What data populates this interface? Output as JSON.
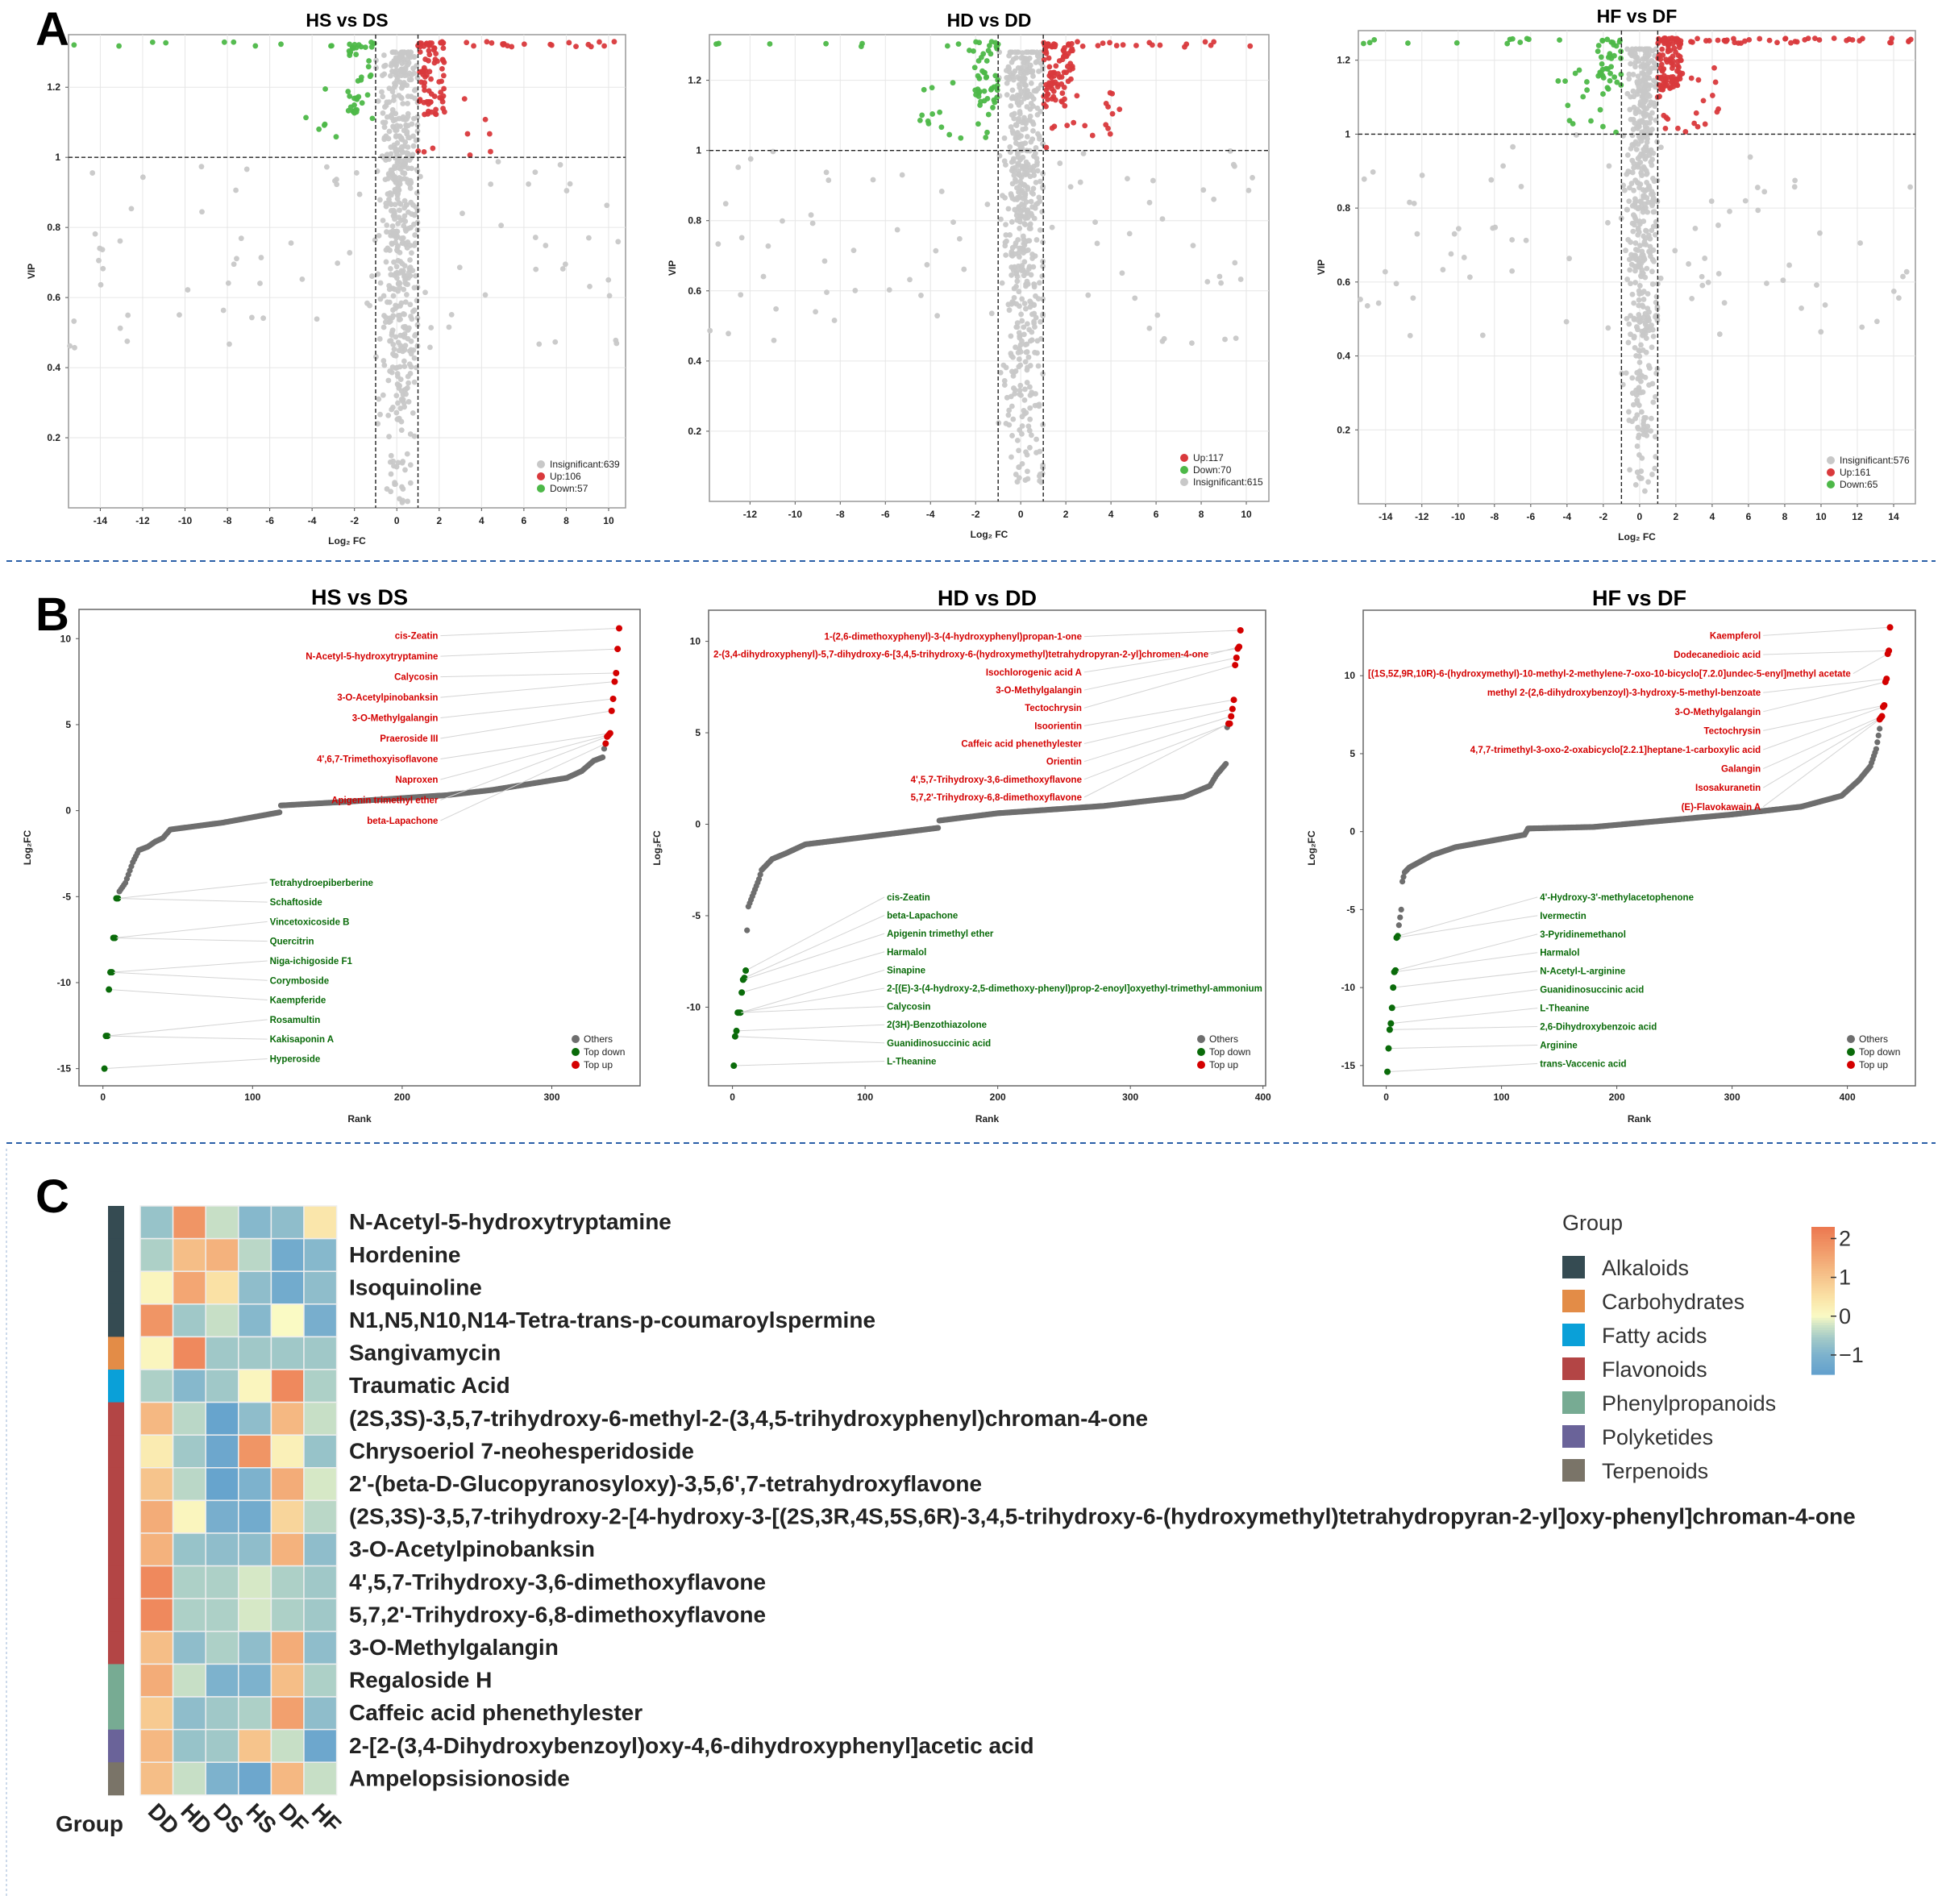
{
  "panels": {
    "a": "A",
    "b": "B",
    "c": "C"
  },
  "colors": {
    "up": "#d9393c",
    "down": "#4db848",
    "insig": "#c8c8c8",
    "others": "#6e6e6e",
    "top_down": "#0a6b0a",
    "top_up": "#d40000"
  },
  "chart_data": [
    {
      "id": "volcano-hs-ds",
      "type": "scatter",
      "title": "HS vs DS",
      "xlabel": "Log₂ FC",
      "ylabel": "VIP",
      "xlim": [
        -15.5,
        10.8
      ],
      "ylim": [
        0,
        1.35
      ],
      "xticks": [
        -14,
        -12,
        -10,
        -8,
        -6,
        -4,
        -2,
        0,
        2,
        4,
        6,
        8,
        10
      ],
      "yticks": [
        0.2,
        0.4,
        0.6,
        0.8,
        1.0,
        1.2
      ],
      "vip_threshold": 1.0,
      "fc_threshold": [
        -1,
        1
      ],
      "seed": 11,
      "legend": [
        {
          "key": "insig",
          "label": "Insignificant:639",
          "count": 639
        },
        {
          "key": "up",
          "label": "Up:106",
          "count": 106
        },
        {
          "key": "down",
          "label": "Down:57",
          "count": 57
        }
      ]
    },
    {
      "id": "volcano-hd-dd",
      "type": "scatter",
      "title": "HD vs DD",
      "xlabel": "Log₂ FC",
      "ylabel": "VIP",
      "xlim": [
        -13.8,
        11
      ],
      "ylim": [
        0,
        1.33
      ],
      "xticks": [
        -12,
        -10,
        -8,
        -6,
        -4,
        -2,
        0,
        2,
        4,
        6,
        8,
        10
      ],
      "yticks": [
        0.2,
        0.4,
        0.6,
        0.8,
        1.0,
        1.2
      ],
      "vip_threshold": 1.0,
      "fc_threshold": [
        -1,
        1
      ],
      "seed": 23,
      "legend": [
        {
          "key": "up",
          "label": "Up:117",
          "count": 117
        },
        {
          "key": "down",
          "label": "Down:70",
          "count": 70
        },
        {
          "key": "insig",
          "label": "Insignificant:615",
          "count": 615
        }
      ]
    },
    {
      "id": "volcano-hf-df",
      "type": "scatter",
      "title": "HF vs DF",
      "xlabel": "Log₂ FC",
      "ylabel": "VIP",
      "xlim": [
        -15.5,
        15.2
      ],
      "ylim": [
        0,
        1.28
      ],
      "xticks": [
        -14,
        -12,
        -10,
        -8,
        -6,
        -4,
        -2,
        0,
        2,
        4,
        6,
        8,
        10,
        12,
        14
      ],
      "yticks": [
        0.2,
        0.4,
        0.6,
        0.8,
        1.0,
        1.2
      ],
      "vip_threshold": 1.0,
      "fc_threshold": [
        -1,
        1
      ],
      "seed": 37,
      "legend": [
        {
          "key": "insig",
          "label": "Insignificant:576",
          "count": 576
        },
        {
          "key": "up",
          "label": "Up:161",
          "count": 161
        },
        {
          "key": "down",
          "label": "Down:65",
          "count": 65
        }
      ]
    },
    {
      "id": "rank-hs-ds",
      "type": "scatter",
      "title": "HS vs DS",
      "xlabel": "Rank",
      "ylabel": "Log₂FC",
      "xlim": [
        -16,
        359
      ],
      "ylim": [
        -16,
        11.7
      ],
      "xticks": [
        0,
        100,
        200,
        300
      ],
      "yticks": [
        -15,
        -10,
        -5,
        0,
        5,
        10
      ],
      "n_total": 345,
      "curve": [
        [
          11,
          -4.7
        ],
        [
          15,
          -4.2
        ],
        [
          20,
          -3.0
        ],
        [
          24,
          -2.3
        ],
        [
          30,
          -2.1
        ],
        [
          35,
          -1.8
        ],
        [
          40,
          -1.6
        ],
        [
          45,
          -1.1
        ],
        [
          80,
          -0.7
        ],
        [
          118,
          -0.1
        ],
        [
          119,
          0.3
        ],
        [
          160,
          0.5
        ],
        [
          230,
          0.9
        ],
        [
          260,
          1.2
        ],
        [
          310,
          1.9
        ],
        [
          320,
          2.3
        ],
        [
          328,
          2.9
        ],
        [
          334,
          3.1
        ],
        [
          335,
          3.6
        ]
      ],
      "top_up": [
        {
          "name": "cis-Zeatin",
          "value": 10.6
        },
        {
          "name": "N-Acetyl-5-hydroxytryptamine",
          "value": 9.4
        },
        {
          "name": "Calycosin",
          "value": 8.0
        },
        {
          "name": "3-O-Acetylpinobanksin",
          "value": 7.5
        },
        {
          "name": "3-O-Methylgalangin",
          "value": 6.5
        },
        {
          "name": "Praeroside III",
          "value": 5.8
        },
        {
          "name": "4',6,7-Trimethoxyisoflavone",
          "value": 4.5
        },
        {
          "name": "Naproxen",
          "value": 4.4
        },
        {
          "name": "Apigenin trimethyl ether",
          "value": 4.3
        },
        {
          "name": "beta-Lapachone",
          "value": 3.9
        }
      ],
      "top_down": [
        {
          "name": "Tetrahydroepiberberine",
          "value": -5.1
        },
        {
          "name": "Schaftoside",
          "value": -5.1
        },
        {
          "name": "Vincetoxicoside B",
          "value": -7.4
        },
        {
          "name": "Quercitrin",
          "value": -7.4
        },
        {
          "name": "Niga-ichigoside F1",
          "value": -9.4
        },
        {
          "name": "Corymboside",
          "value": -9.4
        },
        {
          "name": "Kaempferide",
          "value": -10.4
        },
        {
          "name": "Rosamultin",
          "value": -13.1
        },
        {
          "name": "Kakisaponin A",
          "value": -13.1
        },
        {
          "name": "Hyperoside",
          "value": -15.0
        }
      ],
      "legend": [
        "Others",
        "Top down",
        "Top up"
      ]
    },
    {
      "id": "rank-hd-dd",
      "type": "scatter",
      "title": "HD vs DD",
      "xlabel": "Rank",
      "ylabel": "Log₂FC",
      "xlim": [
        -18,
        402
      ],
      "ylim": [
        -14.3,
        11.7
      ],
      "xticks": [
        0,
        100,
        200,
        300,
        400
      ],
      "yticks": [
        -10,
        -5,
        0,
        5,
        10
      ],
      "n_total": 383,
      "curve": [
        [
          11,
          -5.8
        ],
        [
          12,
          -4.5
        ],
        [
          20,
          -3.0
        ],
        [
          22,
          -2.5
        ],
        [
          30,
          -1.9
        ],
        [
          40,
          -1.6
        ],
        [
          55,
          -1.1
        ],
        [
          100,
          -0.7
        ],
        [
          155,
          -0.2
        ],
        [
          156,
          0.2
        ],
        [
          200,
          0.6
        ],
        [
          280,
          1.0
        ],
        [
          340,
          1.5
        ],
        [
          360,
          2.1
        ],
        [
          365,
          2.7
        ],
        [
          372,
          3.3
        ],
        [
          373,
          5.3
        ]
      ],
      "top_up": [
        {
          "name": "1-(2,6-dimethoxyphenyl)-3-(4-hydroxyphenyl)propan-1-one",
          "value": 10.6
        },
        {
          "name": "2-(3,4-dihydroxyphenyl)-5,7-dihydroxy-6-[3,4,5-trihydroxy-6-(hydroxymethyl)tetrahydropyran-2-yl]chromen-4-one",
          "value": 9.7
        },
        {
          "name": "Isochlorogenic acid A",
          "value": 9.6
        },
        {
          "name": "3-O-Methylgalangin",
          "value": 9.1
        },
        {
          "name": "Tectochrysin",
          "value": 8.7
        },
        {
          "name": "Isoorientin",
          "value": 6.8
        },
        {
          "name": "Caffeic acid phenethylester",
          "value": 6.3
        },
        {
          "name": "Orientin",
          "value": 5.9
        },
        {
          "name": "4',5,7-Trihydroxy-3,6-dimethoxyflavone",
          "value": 5.5
        },
        {
          "name": "5,7,2'-Trihydroxy-6,8-dimethoxyflavone",
          "value": 5.5
        }
      ],
      "top_down": [
        {
          "name": "cis-Zeatin",
          "value": -8.0
        },
        {
          "name": "beta-Lapachone",
          "value": -8.4
        },
        {
          "name": "Apigenin trimethyl ether",
          "value": -8.5
        },
        {
          "name": "Harmalol",
          "value": -9.2
        },
        {
          "name": "Sinapine",
          "value": -10.3
        },
        {
          "name": "2-[(E)-3-(4-hydroxy-2,5-dimethoxy-phenyl)prop-2-enoyl]oxyethyl-trimethyl-ammonium",
          "value": -10.3
        },
        {
          "name": "Calycosin",
          "value": -10.3
        },
        {
          "name": "2(3H)-Benzothiazolone",
          "value": -11.3
        },
        {
          "name": "Guanidinosuccinic acid",
          "value": -11.6
        },
        {
          "name": "L-Theanine",
          "value": -13.2
        }
      ],
      "legend": [
        "Others",
        "Top down",
        "Top up"
      ]
    },
    {
      "id": "rank-hf-df",
      "type": "scatter",
      "title": "HF vs DF",
      "xlabel": "Rank",
      "ylabel": "Log₂FC",
      "xlim": [
        -20,
        459
      ],
      "ylim": [
        -16.3,
        14.2
      ],
      "xticks": [
        0,
        100,
        200,
        300,
        400
      ],
      "yticks": [
        -15,
        -10,
        -5,
        0,
        5,
        10
      ],
      "n_total": 437,
      "curve": [
        [
          11,
          -6.0
        ],
        [
          12,
          -5.5
        ],
        [
          13,
          -5.0
        ],
        [
          14,
          -3.2
        ],
        [
          16,
          -2.6
        ],
        [
          20,
          -2.3
        ],
        [
          40,
          -1.5
        ],
        [
          60,
          -1.0
        ],
        [
          120,
          -0.2
        ],
        [
          123,
          0.2
        ],
        [
          180,
          0.3
        ],
        [
          300,
          1.1
        ],
        [
          360,
          1.6
        ],
        [
          395,
          2.3
        ],
        [
          410,
          3.3
        ],
        [
          420,
          4.2
        ],
        [
          425,
          5.3
        ],
        [
          428,
          6.6
        ]
      ],
      "top_up": [
        {
          "name": "Kaempferol",
          "value": 13.1
        },
        {
          "name": "Dodecanedioic acid",
          "value": 11.6
        },
        {
          "name": "[(1S,5Z,9R,10R)-6-(hydroxymethyl)-10-methyl-2-methylene-7-oxo-10-bicyclo[7.2.0]undec-5-enyl]methyl acetate",
          "value": 11.4
        },
        {
          "name": "methyl 2-(2,6-dihydroxybenzoyl)-3-hydroxy-5-methyl-benzoate",
          "value": 9.8
        },
        {
          "name": "3-O-Methylgalangin",
          "value": 9.6
        },
        {
          "name": "Tectochrysin",
          "value": 8.1
        },
        {
          "name": "4,7,7-trimethyl-3-oxo-2-oxabicyclo[2.2.1]heptane-1-carboxylic acid",
          "value": 8.0
        },
        {
          "name": "Galangin",
          "value": 7.4
        },
        {
          "name": "Isosakuranetin",
          "value": 7.3
        },
        {
          "name": "(E)-Flavokawain A",
          "value": 7.2
        }
      ],
      "top_down": [
        {
          "name": "4'-Hydroxy-3'-methylacetophenone",
          "value": -6.7
        },
        {
          "name": "Ivermectin",
          "value": -6.8
        },
        {
          "name": "3-Pyridinemethanol",
          "value": -8.9
        },
        {
          "name": "Harmalol",
          "value": -9.0
        },
        {
          "name": "N-Acetyl-L-arginine",
          "value": -10.0
        },
        {
          "name": "Guanidinosuccinic acid",
          "value": -11.3
        },
        {
          "name": "L-Theanine",
          "value": -12.3
        },
        {
          "name": "2,6-Dihydroxybenzoic acid",
          "value": -12.7
        },
        {
          "name": "Arginine",
          "value": -13.9
        },
        {
          "name": "trans-Vaccenic acid",
          "value": -15.4
        }
      ],
      "legend": [
        "Others",
        "Top down",
        "Top up"
      ]
    },
    {
      "id": "heatmap",
      "type": "heatmap",
      "group_axis_label": "Group",
      "columns": [
        "DD",
        "HD",
        "DS",
        "HS",
        "DF",
        "HF"
      ],
      "scale": {
        "min": -1.5,
        "max": 2.3,
        "ticks": [
          2,
          1,
          0,
          -1
        ],
        "tick_labels": [
          "2",
          "1",
          "0",
          "−1"
        ]
      },
      "legend_title": "Group",
      "groups": [
        {
          "name": "Alkaloids",
          "color": "#354b52"
        },
        {
          "name": "Carbohydrates",
          "color": "#e38c47"
        },
        {
          "name": "Fatty acids",
          "color": "#0aa0d8"
        },
        {
          "name": "Flavonoids",
          "color": "#b34545"
        },
        {
          "name": "Phenylpropanoids",
          "color": "#77ab93"
        },
        {
          "name": "Polyketides",
          "color": "#6a6399"
        },
        {
          "name": "Terpenoids",
          "color": "#7a7468"
        }
      ],
      "rows": [
        {
          "name": "N-Acetyl-5-hydroxytryptamine",
          "group": 0,
          "values": [
            -0.7,
            1.8,
            -0.3,
            -0.9,
            -0.8,
            0.4
          ]
        },
        {
          "name": "Hordenine",
          "group": 0,
          "values": [
            -0.5,
            1.1,
            1.3,
            -0.4,
            -1.2,
            -0.9
          ]
        },
        {
          "name": "Isoquinoline",
          "group": 0,
          "values": [
            0.1,
            1.5,
            0.5,
            -0.8,
            -1.2,
            -0.8
          ]
        },
        {
          "name": "N1,N5,N10,N14-Tetra-trans-p-coumaroylspermine",
          "group": 0,
          "values": [
            1.8,
            -0.6,
            -0.3,
            -0.9,
            0.0,
            -1.1
          ]
        },
        {
          "name": "Sangivamycin",
          "group": 1,
          "values": [
            0.1,
            2.0,
            -0.6,
            -0.6,
            -0.6,
            -0.6
          ]
        },
        {
          "name": "Traumatic Acid",
          "group": 2,
          "values": [
            -0.5,
            -0.9,
            -0.6,
            0.1,
            2.0,
            -0.5
          ]
        },
        {
          "name": "(2S,3S)-3,5,7-trihydroxy-6-methyl-2-(3,4,5-trihydroxyphenyl)chroman-4-one",
          "group": 3,
          "values": [
            1.2,
            -0.4,
            -1.4,
            -0.8,
            1.2,
            -0.3
          ]
        },
        {
          "name": "Chrysoeriol 7-neohesperidoside",
          "group": 3,
          "values": [
            0.3,
            -0.6,
            -1.3,
            1.8,
            0.2,
            -0.7
          ]
        },
        {
          "name": "2'-(beta-D-Glucopyranosyloxy)-3,5,6',7-tetrahydroxyflavone",
          "group": 3,
          "values": [
            1.0,
            -0.4,
            -1.4,
            -1.0,
            1.4,
            -0.2
          ]
        },
        {
          "name": "(2S,3S)-3,5,7-trihydroxy-2-[4-hydroxy-3-[(2S,3R,4S,5S,6R)-3,4,5-trihydroxy-6-(hydroxymethyl)tetrahydropyran-2-yl]oxy-phenyl]chroman-4-one",
          "group": 3,
          "values": [
            1.4,
            0.1,
            -1.1,
            -1.2,
            0.7,
            -0.4
          ]
        },
        {
          "name": "3-O-Acetylpinobanksin",
          "group": 3,
          "values": [
            1.3,
            -0.7,
            -0.8,
            -0.8,
            1.3,
            -0.8
          ]
        },
        {
          "name": "4',5,7-Trihydroxy-3,6-dimethoxyflavone",
          "group": 3,
          "values": [
            2.0,
            -0.5,
            -0.5,
            -0.2,
            -0.5,
            -0.6
          ]
        },
        {
          "name": "5,7,2'-Trihydroxy-6,8-dimethoxyflavone",
          "group": 3,
          "values": [
            2.0,
            -0.5,
            -0.5,
            -0.2,
            -0.5,
            -0.6
          ]
        },
        {
          "name": "3-O-Methylgalangin",
          "group": 3,
          "values": [
            1.1,
            -0.8,
            -0.5,
            -0.8,
            1.4,
            -0.8
          ]
        },
        {
          "name": "Regaloside H",
          "group": 4,
          "values": [
            1.4,
            -0.3,
            -1.0,
            -1.0,
            1.1,
            -0.5
          ]
        },
        {
          "name": "Caffeic acid phenethylester",
          "group": 4,
          "values": [
            0.9,
            -0.8,
            -0.6,
            -0.5,
            1.6,
            -0.8
          ]
        },
        {
          "name": "2-[2-(3,4-Dihydroxybenzoyl)oxy-4,6-dihydroxyphenyl]acetic acid",
          "group": 5,
          "values": [
            1.2,
            -0.7,
            -0.6,
            1.0,
            -0.3,
            -1.3
          ]
        },
        {
          "name": "Ampelopsisionoside",
          "group": 6,
          "values": [
            1.1,
            -0.3,
            -1.0,
            -1.3,
            1.2,
            -0.3
          ]
        }
      ]
    }
  ]
}
